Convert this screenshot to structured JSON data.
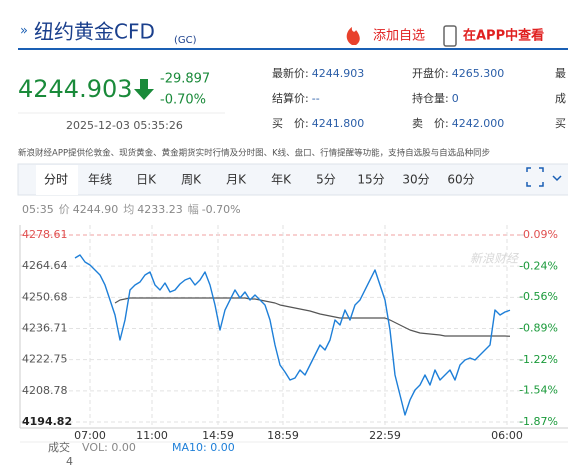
{
  "header": {
    "prefix": "»",
    "title": "纽约黄金CFD",
    "code": "(GC)",
    "actions": [
      "添加自选",
      "在APP中查看"
    ]
  },
  "quote": {
    "price": "4244.903",
    "change": "-29.897",
    "change_pct": "-0.70%",
    "time": "2025-12-03 05:35:26",
    "stats": [
      {
        "label": "最新价:",
        "value": "4244.903"
      },
      {
        "label": "开盘价:",
        "value": "4265.300"
      },
      {
        "label": "最"
      },
      {
        "label": "结算价:",
        "value": "--"
      },
      {
        "label": "持仓量:",
        "value": "0"
      },
      {
        "label": "成"
      },
      {
        "label": "买　价:",
        "value": "4241.800"
      },
      {
        "label": "卖　价:",
        "value": "4242.000"
      },
      {
        "label": "买"
      }
    ]
  },
  "notice": "新浪财经APP提供伦敦金、现货黄金、黄金期货实时行情及分时图、K线、盘口、行情提醒等功能，支持自选股与自选品种同步",
  "tabs": [
    "分时",
    "年线",
    "日K",
    "周K",
    "月K",
    "年K",
    "5分",
    "15分",
    "30分",
    "60分"
  ],
  "chart_data": {
    "type": "line",
    "info": {
      "time": "05:35",
      "items": [
        {
          "label": "价",
          "value": "4244.90"
        },
        {
          "label": "均",
          "value": "4233.23"
        },
        {
          "label": "幅",
          "value": "-0.70%"
        }
      ]
    },
    "watermark": "新浪财经",
    "x": [
      11,
      12,
      13,
      14,
      15,
      16,
      17,
      18,
      19,
      20,
      21,
      22,
      23,
      24,
      25,
      26,
      27,
      28,
      29,
      30,
      31,
      32,
      33,
      34,
      35,
      36,
      37,
      38,
      39,
      40,
      41,
      42,
      43,
      44,
      45,
      46,
      47,
      48,
      49,
      50,
      51,
      52,
      53,
      54,
      55,
      56,
      57,
      58,
      59,
      60,
      61,
      62,
      63,
      64,
      65,
      66,
      67,
      68,
      69,
      70,
      71,
      72,
      73,
      74,
      75,
      76,
      77,
      78,
      79,
      80,
      81,
      82,
      83,
      84,
      85,
      86,
      87,
      88,
      89,
      90,
      91,
      92,
      93,
      94,
      95,
      96,
      97,
      98
    ],
    "xlim": [
      0,
      100
    ],
    "xticks": [
      {
        "value": 14,
        "label": "07:00"
      },
      {
        "value": 26.4,
        "label": "11:00"
      },
      {
        "value": 39.6,
        "label": "14:59"
      },
      {
        "value": 52.6,
        "label": "18:59"
      },
      {
        "value": 73,
        "label": "22:59"
      },
      {
        "value": 97.4,
        "label": "06:00"
      }
    ],
    "ylim": [
      4194.82,
      4278.61
    ],
    "yticks": [
      4278.61,
      4264.64,
      4250.68,
      4236.71,
      4222.75,
      4208.78,
      4194.82
    ],
    "y2lim": [
      -1.87,
      0.09
    ],
    "y2ticks": [
      {
        "value": 0.09,
        "label": "0.09%"
      },
      {
        "value": -0.24,
        "label": "-0.24%"
      },
      {
        "value": -0.56,
        "label": "-0.56%"
      },
      {
        "value": -0.89,
        "label": "-0.89%"
      },
      {
        "value": -1.22,
        "label": "-1.22%"
      },
      {
        "value": -1.54,
        "label": "-1.54%"
      },
      {
        "value": -1.87,
        "label": "-1.87%"
      }
    ],
    "grid": true,
    "series": [
      {
        "name": "价",
        "color": "#1e7fd8",
        "values": [
          4268.3,
          4269.65,
          4266.51,
          4265.17,
          4262.93,
          4260.69,
          4256.21,
          4249.49,
          4242.76,
          4231.56,
          4240.52,
          4253.97,
          4256.21,
          4257.55,
          4260.69,
          4262.03,
          4256.21,
          4253.97,
          4257.1,
          4253.07,
          4253.97,
          4256.65,
          4258.45,
          4259.34,
          4256.21,
          4258.45,
          4262.03,
          4256.21,
          4247.25,
          4236.04,
          4245.0,
          4249.49,
          4253.97,
          4250.38,
          4253.07,
          4249.49,
          4251.73,
          4249.49,
          4247.25,
          4240.52,
          4229.32,
          4220.36,
          4217.22,
          4213.64,
          4214.54,
          4218.12,
          4215.88,
          4220.36,
          4224.84,
          4229.32,
          4227.08,
          4231.56,
          4240.52,
          4238.28,
          4245.0,
          4240.52,
          4247.25,
          4249.49,
          4253.97,
          4258.45,
          4262.93,
          4256.21,
          4249.49,
          4236.04,
          4215.88,
          4206.92,
          4197.96,
          4204.68,
          4209.16,
          4211.4,
          4215.88,
          4211.4,
          4218.12,
          4213.64,
          4215.88,
          4218.12,
          4213.64,
          4220.36,
          4222.6,
          4223.5,
          4222.6,
          4224.84,
          4227.08,
          4229.32,
          4245.0,
          4242.76,
          4244.11,
          4244.9
        ]
      },
      {
        "name": "均",
        "color": "#555555",
        "values": [
          null,
          null,
          null,
          null,
          null,
          null,
          null,
          null,
          4248.14,
          4249.49,
          4249.94,
          4250.38,
          4250.38,
          4250.38,
          4250.38,
          4250.38,
          4250.38,
          4250.38,
          4250.38,
          4250.38,
          4250.38,
          4250.38,
          4250.38,
          4250.38,
          4250.38,
          4250.38,
          4250.38,
          4250.38,
          4250.38,
          4250.38,
          4250.38,
          4250.38,
          4250.38,
          4250.38,
          4250.38,
          4249.94,
          4249.94,
          4249.49,
          4249.04,
          4248.59,
          4248.14,
          4247.25,
          4246.8,
          4246.35,
          4245.9,
          4245.45,
          4245.0,
          4244.56,
          4243.88,
          4243.21,
          4242.76,
          4242.32,
          4241.87,
          4241.42,
          4241.42,
          4241.42,
          4241.42,
          4241.42,
          4241.42,
          4241.42,
          4241.42,
          4241.42,
          4241.42,
          4240.52,
          4239.4,
          4238.28,
          4237.16,
          4236.04,
          4235.37,
          4234.7,
          4234.48,
          4234.25,
          4234.02,
          4233.8,
          4233.35,
          4233.35,
          4233.35,
          4233.35,
          4233.35,
          4233.35,
          4233.35,
          4233.35,
          4233.35,
          4233.35,
          4233.35,
          4233.35,
          4233.35,
          4233.23
        ]
      }
    ],
    "volume": {
      "label": "成交",
      "count": "4",
      "vol": "VOL: 0.00",
      "ma10": "MA10: 0.00"
    }
  }
}
